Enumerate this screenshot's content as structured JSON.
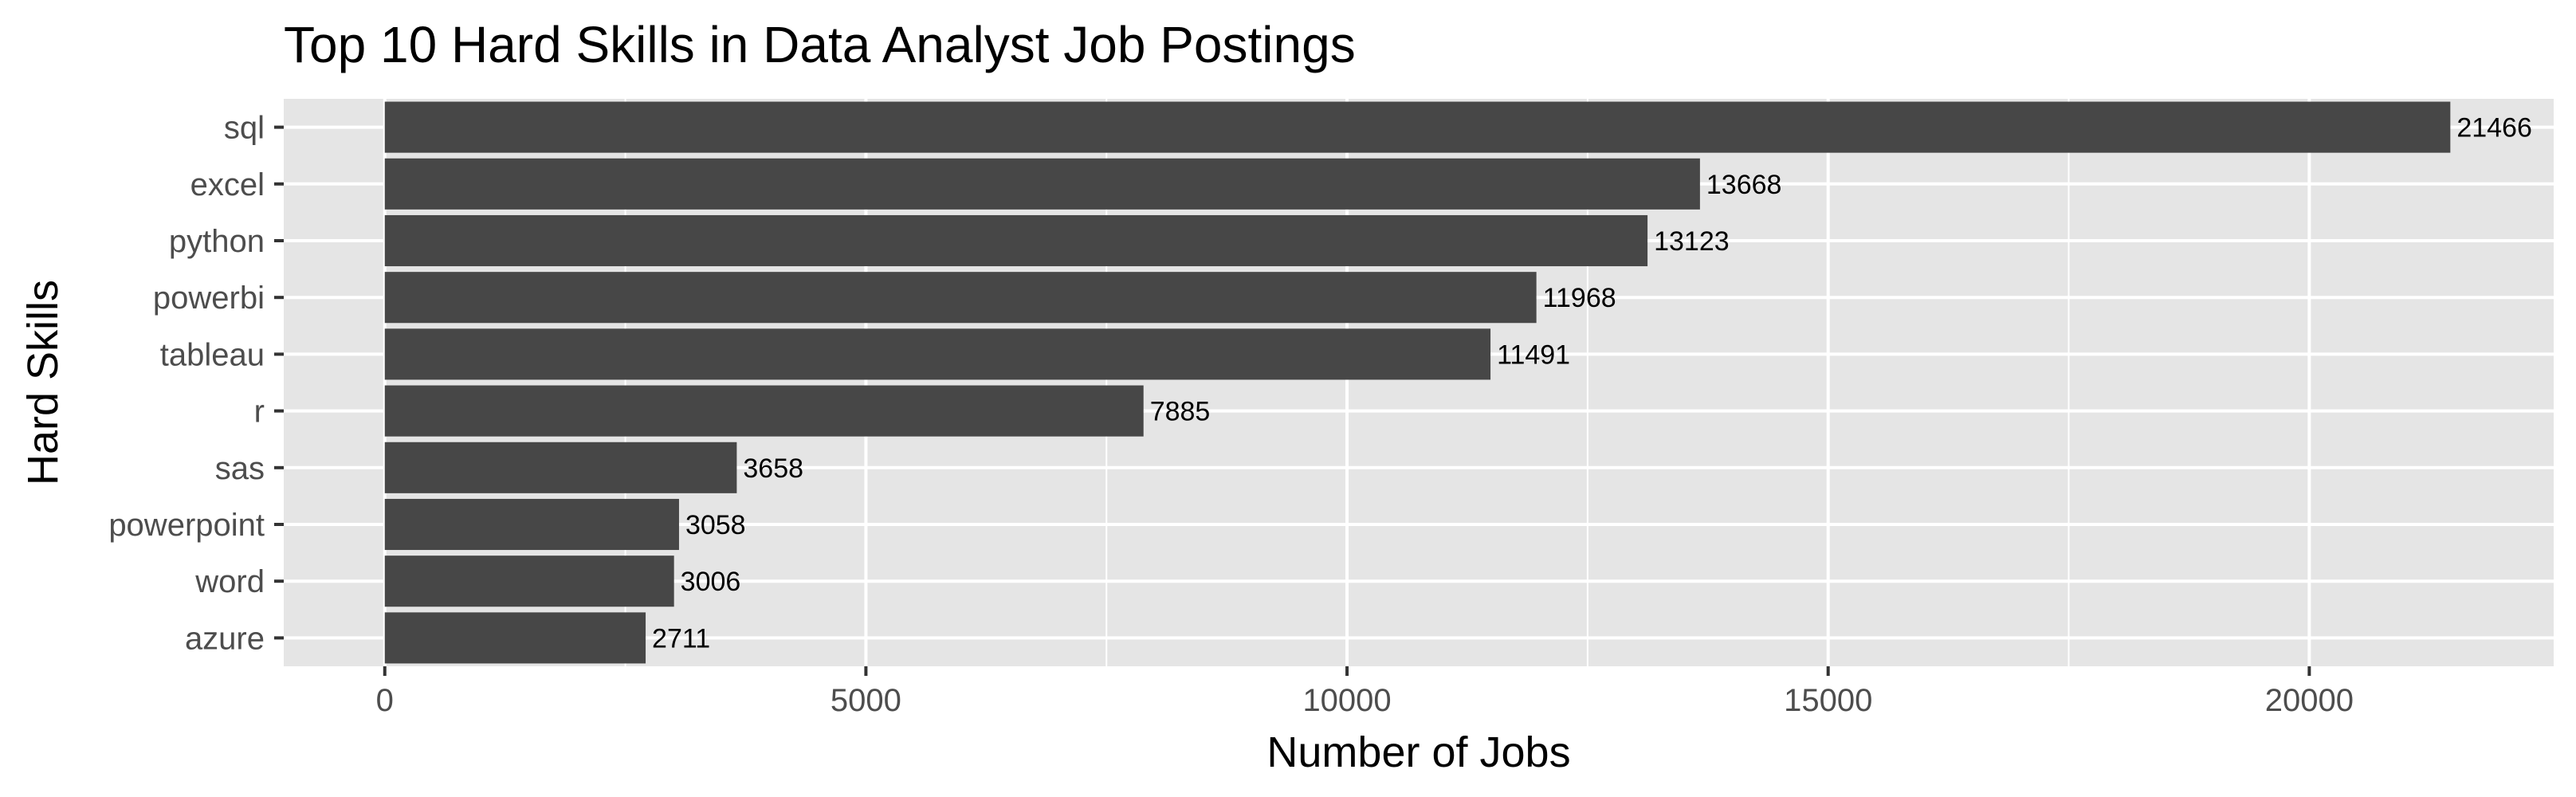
{
  "chart_data": {
    "type": "bar",
    "orientation": "horizontal",
    "title": "Top 10 Hard Skills in Data Analyst Job Postings",
    "xlabel": "Number of Jobs",
    "ylabel": "Hard Skills",
    "categories": [
      "sql",
      "excel",
      "python",
      "powerbi",
      "tableau",
      "r",
      "sas",
      "powerpoint",
      "word",
      "azure"
    ],
    "values": [
      21466,
      13668,
      13123,
      11968,
      11491,
      7885,
      3658,
      3058,
      3006,
      2711
    ],
    "xlim": [
      -1050,
      22540
    ],
    "xticks": [
      0,
      5000,
      10000,
      15000,
      20000
    ],
    "data_labels": true,
    "grid": true,
    "legend": "none",
    "colors": {
      "bar": "#474747",
      "panel_background": "#e5e5e5",
      "grid": "#ffffff",
      "tick_text": "#4d4d4d"
    }
  }
}
